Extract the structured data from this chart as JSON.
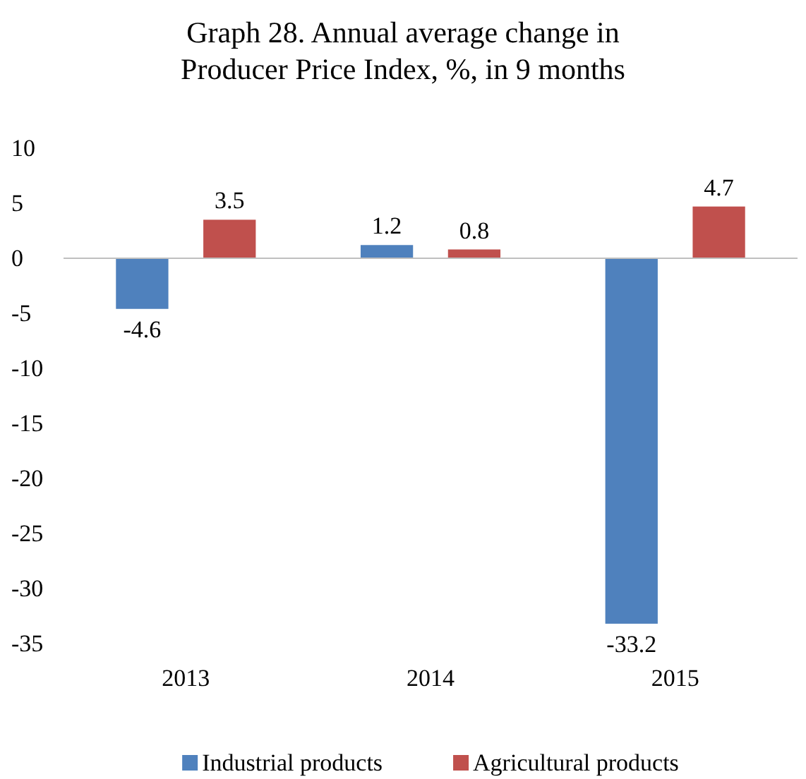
{
  "chart_data": {
    "type": "bar",
    "title": "Graph 28. Annual average change in Producer Price Index, %, in 9 months",
    "categories": [
      "2013",
      "2014",
      "2015"
    ],
    "series": [
      {
        "name": "Industrial products",
        "color": "#4f81bd",
        "values": [
          -4.6,
          1.2,
          -33.2
        ]
      },
      {
        "name": "Agricultural products",
        "color": "#c0504d",
        "values": [
          3.5,
          0.8,
          4.7
        ]
      }
    ],
    "ylim": [
      -35,
      10
    ],
    "yticks": [
      -35,
      -30,
      -25,
      -20,
      -15,
      -10,
      -5,
      0,
      5,
      10
    ],
    "legend": "bottom",
    "data_labels": true
  }
}
